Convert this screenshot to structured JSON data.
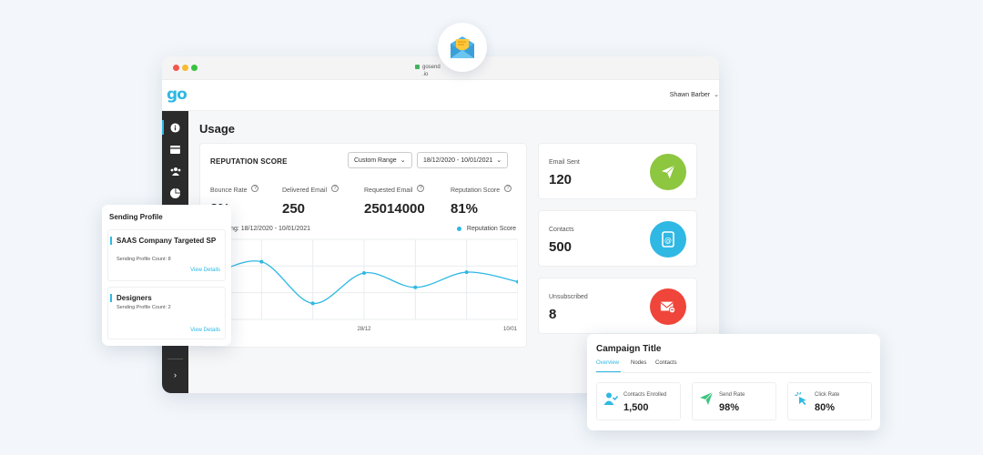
{
  "browser": {
    "url_line1": "gosend",
    "url_line2": ".io"
  },
  "app": {
    "logo": "go",
    "user": "Shawn Barber"
  },
  "page": {
    "title": "Usage"
  },
  "reputation": {
    "title": "REPUTATION SCORE",
    "range_select": "Custom Range",
    "date_select": "18/12/2020 - 10/01/2021",
    "metrics": [
      {
        "label": "Bounce Rate",
        "value": "2%"
      },
      {
        "label": "Delivered Email",
        "value": "250"
      },
      {
        "label": "Requested Email",
        "value": "25014000"
      },
      {
        "label": "Reputation Score",
        "value": "81%"
      }
    ],
    "viewing": "y Viewing: 18/12/2020 - 10/01/2021",
    "legend": "Reputation Score"
  },
  "chart_data": {
    "type": "line",
    "x": [
      0,
      1,
      2,
      3,
      4,
      5,
      6
    ],
    "tick_labels": [
      "/12",
      "28/12",
      "10/01"
    ],
    "series": [
      {
        "name": "Reputation Score",
        "values": [
          55,
          72,
          20,
          58,
          40,
          59,
          47
        ]
      }
    ],
    "ylim": [
      0,
      100
    ],
    "grid": true
  },
  "stats": [
    {
      "label": "Email Sent",
      "value": "120",
      "color": "#8dc63f",
      "icon": "paper-plane-icon"
    },
    {
      "label": "Contacts",
      "value": "500",
      "color": "#2fb8e3",
      "icon": "contacts-book-icon"
    },
    {
      "label": "Unsubscribed",
      "value": "8",
      "color": "#f0453a",
      "icon": "mail-remove-icon"
    }
  ],
  "sending_profile": {
    "title": "Sending Profile",
    "items": [
      {
        "name": "SAAS Company Targeted SP",
        "count": "Sending Profile Count: 8",
        "link": "View Details"
      },
      {
        "name": "Designers",
        "count": "Sending Profile Count: 2",
        "link": "View Details"
      }
    ]
  },
  "campaign": {
    "title": "Campaign Title",
    "tabs": [
      "Overview",
      "Nodes",
      "Contacts"
    ],
    "stats": [
      {
        "label": "Contacts Enrolled",
        "value": "1,500",
        "icon": "user-check-icon"
      },
      {
        "label": "Send Rate",
        "value": "98%",
        "icon": "send-icon"
      },
      {
        "label": "Click Rate",
        "value": "80%",
        "icon": "cursor-click-icon"
      }
    ]
  },
  "colors": {
    "accent": "#2fb8e3",
    "sidebar": "#2b2b2b"
  }
}
